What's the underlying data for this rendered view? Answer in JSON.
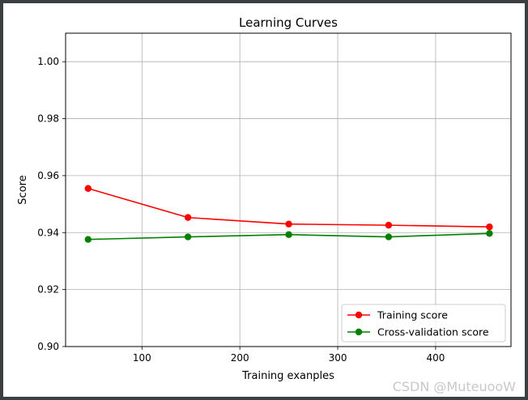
{
  "chart_data": {
    "type": "line",
    "title": "Learning Curves",
    "xlabel": "Training exanples",
    "ylabel": "Score",
    "xlim": [
      22,
      477
    ],
    "ylim": [
      0.9,
      1.01
    ],
    "x_ticks": [
      100,
      200,
      300,
      400
    ],
    "y_ticks": [
      0.9,
      0.92,
      0.94,
      0.96,
      0.98,
      1.0
    ],
    "x_tick_labels": [
      "100",
      "200",
      "300",
      "400"
    ],
    "y_tick_labels": [
      "0.90",
      "0.92",
      "0.94",
      "0.96",
      "0.98",
      "1.00"
    ],
    "grid": true,
    "legend_position": "lower-right",
    "x": [
      45,
      147,
      250,
      352,
      455
    ],
    "series": [
      {
        "name": "Training score",
        "color": "#ff0000",
        "values": [
          0.9555,
          0.9453,
          0.943,
          0.9426,
          0.942
        ]
      },
      {
        "name": "Cross-validation score",
        "color": "#008000",
        "values": [
          0.9376,
          0.9385,
          0.9393,
          0.9385,
          0.9397
        ]
      }
    ]
  },
  "watermark": "CSDN @MuteuooW"
}
